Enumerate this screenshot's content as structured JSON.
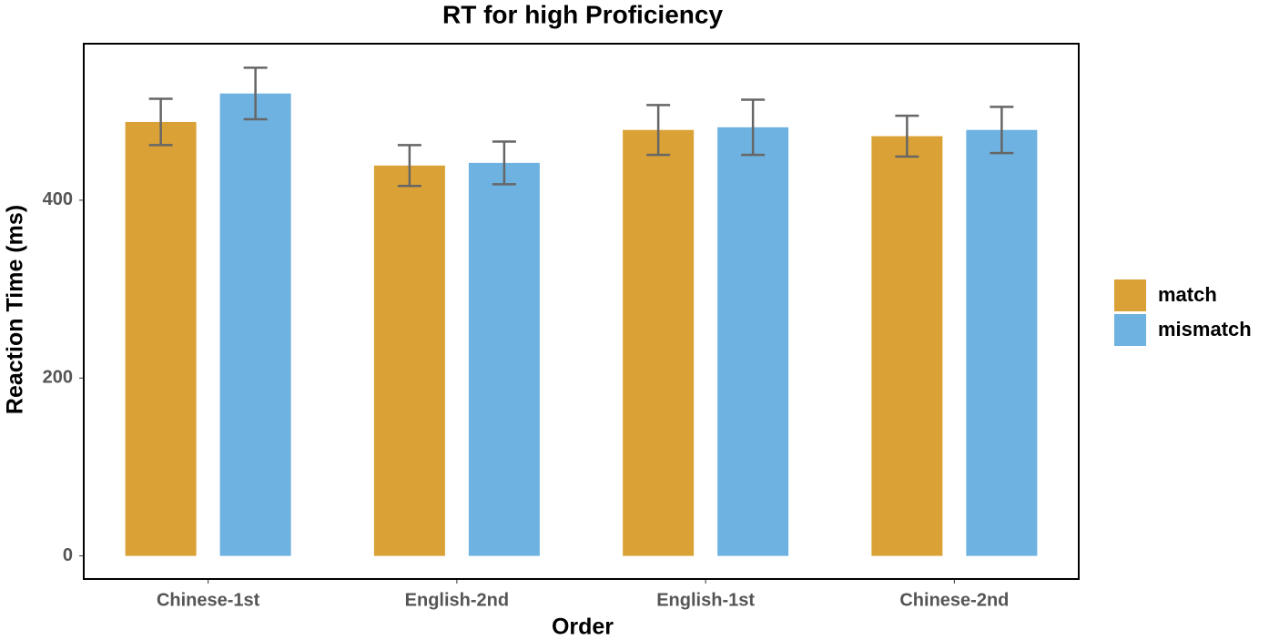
{
  "chart_data": {
    "type": "bar",
    "title": "RT for high Proficiency",
    "x_label": "Order",
    "y_label": "Reaction Time (ms)",
    "categories": [
      "Chinese-1st",
      "English-2nd",
      "English-1st",
      "Chinese-2nd"
    ],
    "series": [
      {
        "name": "match",
        "color": "#DAA236",
        "values": [
          488,
          439,
          479,
          472
        ],
        "errors": [
          26,
          23,
          28,
          23
        ]
      },
      {
        "name": "mismatch",
        "color": "#6DB2E0",
        "values": [
          520,
          442,
          482,
          479
        ],
        "errors": [
          29,
          24,
          31,
          26
        ]
      }
    ],
    "ylim": [
      -26,
      576
    ],
    "yticks": [
      0,
      200,
      400
    ],
    "grid": false,
    "legend": "right"
  }
}
